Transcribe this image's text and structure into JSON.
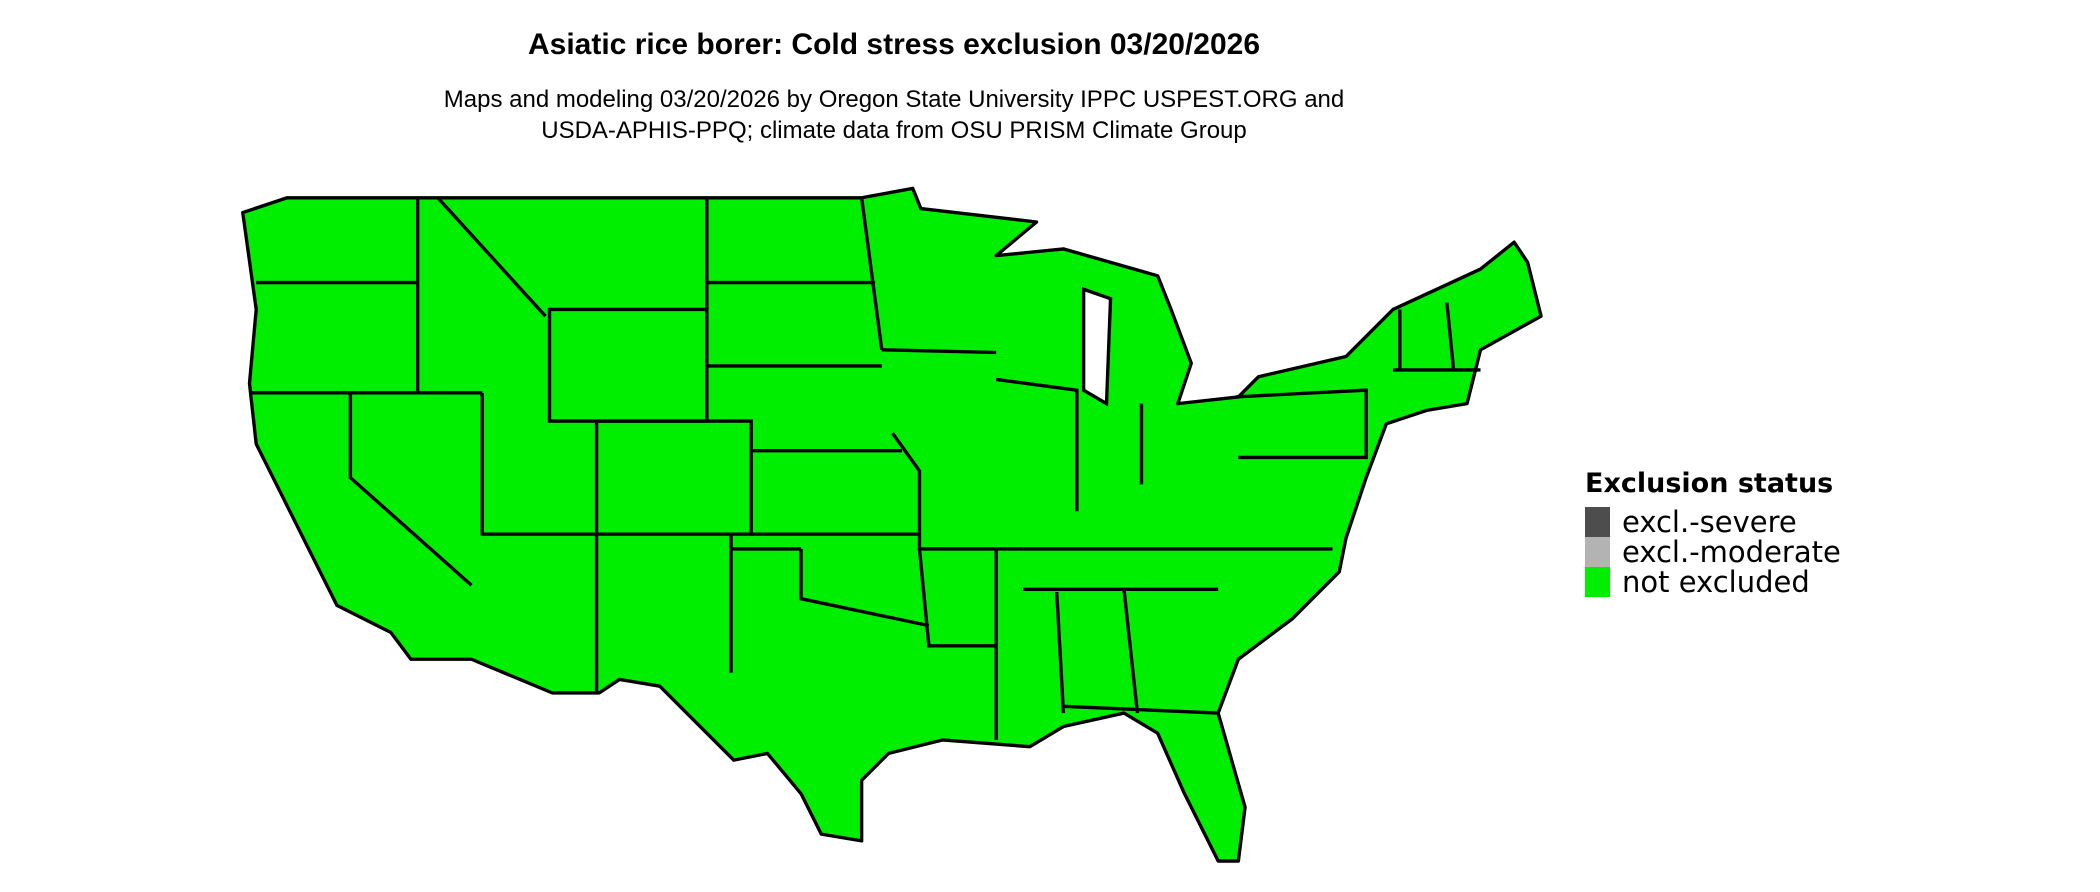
{
  "title": "Asiatic rice borer: Cold stress exclusion 03/20/2026",
  "subtitle_lines": [
    "Maps and modeling 03/20/2026 by Oregon State University IPPC USPEST.ORG and",
    "USDA-APHIS-PPQ; climate data from OSU PRISM Climate Group"
  ],
  "legend": {
    "title": "Exclusion status",
    "items": [
      {
        "label": "excl.-severe",
        "color": "#4d4d4d"
      },
      {
        "label": "excl.-moderate",
        "color": "#b3b3b3"
      },
      {
        "label": "not excluded",
        "color": "#00ee00"
      }
    ]
  },
  "map": {
    "region": "Contiguous United States",
    "fill_status": "not excluded",
    "fill_color": "#00ee00",
    "border_color": "#000000"
  }
}
